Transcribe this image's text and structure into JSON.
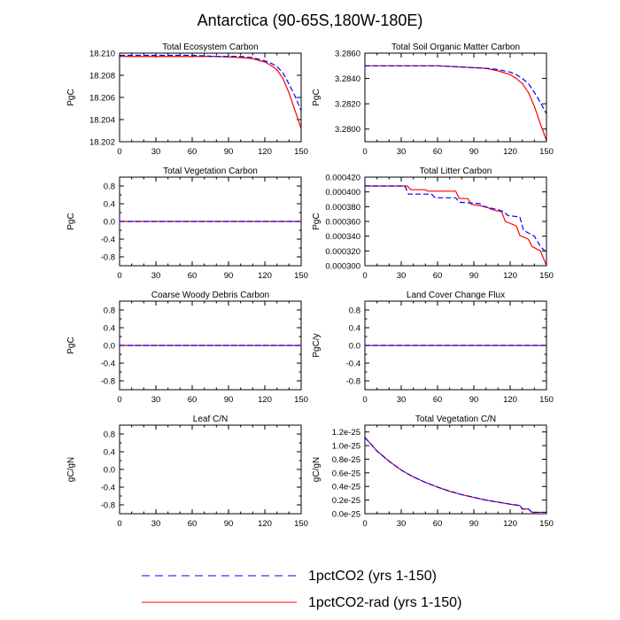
{
  "figure": {
    "title": "Antarctica (90-65S,180W-180E)",
    "legend": [
      {
        "label": "1pctCO2 (yrs 1-150)",
        "color": "#0000ff",
        "style": "dashed"
      },
      {
        "label": "1pctCO2-rad (yrs 1-150)",
        "color": "#ff0000",
        "style": "solid"
      }
    ]
  },
  "chart_data": [
    {
      "type": "line",
      "title": "Total Ecosystem Carbon",
      "xlabel": "",
      "ylabel": "PgC",
      "xlim": [
        0,
        150
      ],
      "ylim": [
        18.202,
        18.21
      ],
      "xticks": [
        0,
        30,
        60,
        90,
        120,
        150
      ],
      "yticks": [
        18.202,
        18.204,
        18.206,
        18.208,
        18.21
      ],
      "yticklabels": [
        "18.202",
        "18.204",
        "18.206",
        "18.208",
        "18.210"
      ],
      "series": [
        {
          "name": "1pctCO2 (yrs 1-150)",
          "color": "#0000ff",
          "dash": true,
          "x": [
            0,
            20,
            40,
            60,
            80,
            100,
            110,
            120,
            125,
            130,
            135,
            140,
            145,
            150
          ],
          "y": [
            18.2098,
            18.2098,
            18.2098,
            18.2098,
            18.2097,
            18.2097,
            18.2096,
            18.2093,
            18.2091,
            18.2088,
            18.2082,
            18.2072,
            18.2061,
            18.2048
          ]
        },
        {
          "name": "1pctCO2-rad (yrs 1-150)",
          "color": "#ff0000",
          "dash": false,
          "x": [
            0,
            20,
            40,
            60,
            80,
            100,
            110,
            120,
            125,
            130,
            135,
            140,
            145,
            150
          ],
          "y": [
            18.2097,
            18.2097,
            18.2097,
            18.2097,
            18.2097,
            18.2096,
            18.2095,
            18.2092,
            18.2089,
            18.2085,
            18.2077,
            18.2064,
            18.2048,
            18.2032
          ]
        }
      ]
    },
    {
      "type": "line",
      "title": "Total Soil Organic Matter Carbon",
      "xlabel": "",
      "ylabel": "PgC",
      "xlim": [
        0,
        150
      ],
      "ylim": [
        3.279,
        3.286
      ],
      "xticks": [
        0,
        30,
        60,
        90,
        120,
        150
      ],
      "yticks": [
        3.28,
        3.282,
        3.284,
        3.286
      ],
      "yticklabels": [
        "3.2800",
        "3.2820",
        "3.2840",
        "3.2860"
      ],
      "series": [
        {
          "name": "1pctCO2 (yrs 1-150)",
          "color": "#0000ff",
          "dash": true,
          "x": [
            0,
            20,
            40,
            60,
            80,
            100,
            110,
            120,
            125,
            130,
            135,
            140,
            145,
            150
          ],
          "y": [
            3.285,
            3.285,
            3.285,
            3.285,
            3.2849,
            3.2848,
            3.2847,
            3.2845,
            3.2843,
            3.284,
            3.2836,
            3.2829,
            3.2821,
            3.2812
          ]
        },
        {
          "name": "1pctCO2-rad (yrs 1-150)",
          "color": "#ff0000",
          "dash": false,
          "x": [
            0,
            20,
            40,
            60,
            80,
            100,
            110,
            120,
            125,
            130,
            135,
            140,
            145,
            150
          ],
          "y": [
            3.285,
            3.285,
            3.285,
            3.285,
            3.2849,
            3.2848,
            3.2846,
            3.2843,
            3.284,
            3.2836,
            3.2829,
            3.2818,
            3.2804,
            3.2791
          ]
        }
      ]
    },
    {
      "type": "line",
      "title": "Total Vegetation Carbon",
      "xlabel": "",
      "ylabel": "PgC",
      "xlim": [
        0,
        150
      ],
      "ylim": [
        -1.0,
        1.0
      ],
      "xticks": [
        0,
        30,
        60,
        90,
        120,
        150
      ],
      "yticks": [
        -0.8,
        -0.4,
        0.0,
        0.4,
        0.8
      ],
      "yticklabels": [
        "-0.8",
        "-0.4",
        "0.0",
        "0.4",
        "0.8"
      ],
      "yminor": [
        -0.6,
        -0.2,
        0.2,
        0.6
      ],
      "series": [
        {
          "name": "1pctCO2 (yrs 1-150)",
          "color": "#0000ff",
          "dash": true,
          "x": [
            0,
            150
          ],
          "y": [
            0,
            0
          ]
        },
        {
          "name": "1pctCO2-rad (yrs 1-150)",
          "color": "#ff0000",
          "dash": false,
          "x": [
            0,
            150
          ],
          "y": [
            0,
            0
          ]
        }
      ]
    },
    {
      "type": "line",
      "title": "Total Litter Carbon",
      "xlabel": "",
      "ylabel": "PgC",
      "xlim": [
        0,
        150
      ],
      "ylim": [
        0.0003,
        0.00042
      ],
      "xticks": [
        0,
        30,
        60,
        90,
        120,
        150
      ],
      "yticks": [
        0.0003,
        0.00032,
        0.00034,
        0.00036,
        0.00038,
        0.0004,
        0.00042
      ],
      "yticklabels": [
        "0.000300",
        "0.000320",
        "0.000340",
        "0.000360",
        "0.000380",
        "0.000400",
        "0.000420"
      ],
      "series": [
        {
          "name": "1pctCO2 (yrs 1-150)",
          "color": "#0000ff",
          "dash": true,
          "x": [
            0,
            33,
            36,
            55,
            58,
            75,
            78,
            95,
            98,
            110,
            115,
            118,
            128,
            131,
            140,
            145,
            150
          ],
          "y": [
            0.000408,
            0.000408,
            0.000397,
            0.000397,
            0.000392,
            0.000392,
            0.000386,
            0.000384,
            0.00038,
            0.000376,
            0.000373,
            0.000368,
            0.000366,
            0.000348,
            0.00034,
            0.000326,
            0.000318
          ]
        },
        {
          "name": "1pctCO2-rad (yrs 1-150)",
          "color": "#ff0000",
          "dash": false,
          "x": [
            0,
            35,
            38,
            50,
            52,
            75,
            78,
            85,
            88,
            100,
            105,
            113,
            116,
            125,
            128,
            135,
            138,
            145,
            150
          ],
          "y": [
            0.000408,
            0.000408,
            0.000403,
            0.000403,
            0.000401,
            0.000401,
            0.000391,
            0.000391,
            0.000383,
            0.00038,
            0.000376,
            0.000373,
            0.00036,
            0.000354,
            0.000341,
            0.000336,
            0.000326,
            0.00032,
            0.0003
          ]
        }
      ]
    },
    {
      "type": "line",
      "title": "Coarse Woody Debris Carbon",
      "xlabel": "",
      "ylabel": "PgC",
      "xlim": [
        0,
        150
      ],
      "ylim": [
        -1.0,
        1.0
      ],
      "xticks": [
        0,
        30,
        60,
        90,
        120,
        150
      ],
      "yticks": [
        -0.8,
        -0.4,
        0.0,
        0.4,
        0.8
      ],
      "yticklabels": [
        "-0.8",
        "-0.4",
        "0.0",
        "0.4",
        "0.8"
      ],
      "yminor": [
        -0.6,
        -0.2,
        0.2,
        0.6
      ],
      "series": [
        {
          "name": "1pctCO2 (yrs 1-150)",
          "color": "#0000ff",
          "dash": true,
          "x": [
            0,
            150
          ],
          "y": [
            0,
            0
          ]
        },
        {
          "name": "1pctCO2-rad (yrs 1-150)",
          "color": "#ff0000",
          "dash": false,
          "x": [
            0,
            150
          ],
          "y": [
            0,
            0
          ]
        }
      ]
    },
    {
      "type": "line",
      "title": "Land Cover Change Flux",
      "xlabel": "",
      "ylabel": "PgC/y",
      "xlim": [
        0,
        150
      ],
      "ylim": [
        -1.0,
        1.0
      ],
      "xticks": [
        0,
        30,
        60,
        90,
        120,
        150
      ],
      "yticks": [
        -0.8,
        -0.4,
        0.0,
        0.4,
        0.8
      ],
      "yticklabels": [
        "-0.8",
        "-0.4",
        "0.0",
        "0.4",
        "0.8"
      ],
      "yminor": [
        -0.6,
        -0.2,
        0.2,
        0.6
      ],
      "series": [
        {
          "name": "1pctCO2 (yrs 1-150)",
          "color": "#0000ff",
          "dash": true,
          "x": [
            0,
            150
          ],
          "y": [
            0,
            0
          ]
        },
        {
          "name": "1pctCO2-rad (yrs 1-150)",
          "color": "#ff0000",
          "dash": false,
          "x": [
            0,
            150
          ],
          "y": [
            0,
            0
          ]
        }
      ]
    },
    {
      "type": "line",
      "title": "Leaf C/N",
      "xlabel": "",
      "ylabel": "gC/gN",
      "xlim": [
        0,
        150
      ],
      "ylim": [
        -1.0,
        1.0
      ],
      "xticks": [
        0,
        30,
        60,
        90,
        120,
        150
      ],
      "yticks": [
        -0.8,
        -0.4,
        0.0,
        0.4,
        0.8
      ],
      "yticklabels": [
        "-0.8",
        "-0.4",
        "0.0",
        "0.4",
        "0.8"
      ],
      "yminor": [
        -0.6,
        -0.2,
        0.2,
        0.6
      ],
      "series": []
    },
    {
      "type": "line",
      "title": "Total Vegetation C/N",
      "xlabel": "",
      "ylabel": "gC/gN",
      "xlim": [
        0,
        150
      ],
      "ylim": [
        0,
        1.3e-25
      ],
      "xticks": [
        0,
        30,
        60,
        90,
        120,
        150
      ],
      "yticks": [
        0,
        2e-26,
        4e-26,
        6e-26,
        8e-26,
        1e-25,
        1.2e-25
      ],
      "yticklabels": [
        "0.0e-25",
        "0.2e-25",
        "0.4e-25",
        "0.6e-25",
        "0.8e-25",
        "1.0e-25",
        "1.2e-25"
      ],
      "series": [
        {
          "name": "1pctCO2 (yrs 1-150)",
          "color": "#0000ff",
          "dash": true,
          "x": [
            0,
            10,
            20,
            30,
            40,
            50,
            60,
            70,
            80,
            90,
            100,
            110,
            120,
            128,
            130,
            135,
            138,
            140,
            150
          ],
          "y": [
            1.12e-25,
            9.2e-26,
            7.7e-26,
            6.4e-26,
            5.4e-26,
            4.6e-26,
            3.9e-26,
            3.3e-26,
            2.8e-26,
            2.4e-26,
            2e-26,
            1.7e-26,
            1.4e-26,
            1.2e-26,
            7e-27,
            7e-27,
            2e-27,
            2e-27,
            2e-27
          ]
        },
        {
          "name": "1pctCO2-rad (yrs 1-150)",
          "color": "#ff0000",
          "dash": false,
          "x": [
            0,
            10,
            20,
            30,
            40,
            50,
            60,
            70,
            80,
            90,
            100,
            110,
            120,
            128,
            130,
            135,
            138,
            140,
            150
          ],
          "y": [
            1.12e-25,
            9.2e-26,
            7.7e-26,
            6.4e-26,
            5.4e-26,
            4.6e-26,
            3.9e-26,
            3.3e-26,
            2.8e-26,
            2.4e-26,
            2e-26,
            1.7e-26,
            1.4e-26,
            1.2e-26,
            7e-27,
            7e-27,
            2e-27,
            2e-27,
            2e-27
          ]
        }
      ]
    }
  ]
}
